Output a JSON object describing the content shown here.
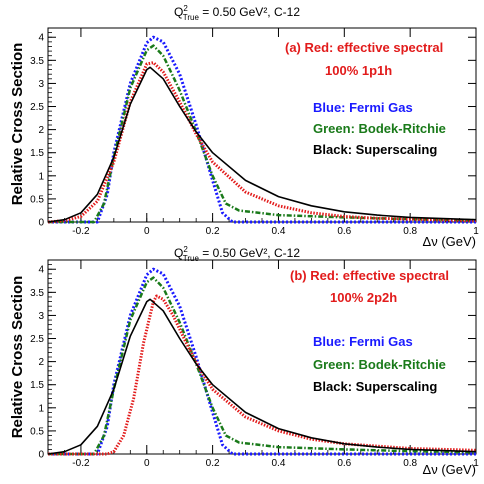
{
  "chart_data": [
    {
      "type": "line",
      "title_prefix": "Q",
      "title_sup": "2",
      "title_sub": "True",
      "title_rest": " = 0.50 GeV², C-12",
      "xlabel": "Δν (GeV)",
      "ylabel": "Relative Cross Section",
      "xlim": [
        -0.3,
        1.0
      ],
      "ylim": [
        0,
        4.2
      ],
      "xticks": [
        -0.2,
        0,
        0.2,
        0.4,
        0.6,
        0.8,
        1
      ],
      "xtick_labels": [
        "-0.2",
        "0",
        "0.2",
        "0.4",
        "0.6",
        "0.8",
        "1"
      ],
      "yticks": [
        0,
        0.5,
        1,
        1.5,
        2,
        2.5,
        3,
        3.5,
        4
      ],
      "ytick_labels": [
        "0",
        "0.5",
        "1",
        "1.5",
        "2",
        "2.5",
        "3",
        "3.5",
        "4"
      ],
      "annotation_line1": "(a) Red:  effective spectral",
      "annotation_line2": "100% 1p1h",
      "legend": [
        {
          "text": "Blue:  Fermi Gas",
          "color": "#1a1aff"
        },
        {
          "text": "Green:  Bodek-Ritchie",
          "color": "#1a7a1a"
        },
        {
          "text": "Black:  Superscaling",
          "color": "#000000"
        }
      ],
      "series": [
        {
          "color": "#1a1aff",
          "style": "dotted",
          "x": [
            -0.3,
            -0.15,
            -0.12,
            -0.1,
            -0.05,
            0,
            0.02,
            0.05,
            0.1,
            0.15,
            0.2,
            0.23,
            0.26,
            0.3,
            0.5,
            1.0
          ],
          "y": [
            0,
            0,
            0.6,
            1.5,
            3.0,
            3.88,
            4.0,
            3.9,
            3.2,
            2.1,
            0.9,
            0.2,
            0,
            0,
            0,
            0
          ]
        },
        {
          "color": "#1a7a1a",
          "style": "dashdot",
          "x": [
            -0.3,
            -0.16,
            -0.13,
            -0.1,
            -0.05,
            0,
            0.02,
            0.05,
            0.1,
            0.15,
            0.2,
            0.24,
            0.28,
            0.4,
            0.6,
            0.8,
            1.0
          ],
          "y": [
            0,
            0,
            0.4,
            1.4,
            2.9,
            3.72,
            3.82,
            3.6,
            2.85,
            1.95,
            1.0,
            0.4,
            0.25,
            0.15,
            0.1,
            0.06,
            0.04
          ]
        },
        {
          "color": "#e21b1b",
          "style": "dotted-thick",
          "x": [
            -0.3,
            -0.25,
            -0.2,
            -0.15,
            -0.1,
            -0.05,
            0,
            0.02,
            0.05,
            0.1,
            0.15,
            0.2,
            0.3,
            0.4,
            0.5,
            0.6,
            0.7,
            0.8,
            1.0
          ],
          "y": [
            0,
            0.03,
            0.12,
            0.45,
            1.3,
            2.6,
            3.42,
            3.45,
            3.25,
            2.6,
            1.9,
            1.3,
            0.65,
            0.35,
            0.2,
            0.12,
            0.08,
            0.06,
            0.03
          ]
        },
        {
          "color": "#000000",
          "style": "solid",
          "x": [
            -0.3,
            -0.25,
            -0.2,
            -0.15,
            -0.1,
            -0.05,
            0,
            0.01,
            0.05,
            0.1,
            0.15,
            0.2,
            0.3,
            0.4,
            0.5,
            0.6,
            0.7,
            0.8,
            1.0
          ],
          "y": [
            0,
            0.05,
            0.2,
            0.6,
            1.4,
            2.55,
            3.3,
            3.35,
            3.1,
            2.5,
            1.95,
            1.5,
            0.9,
            0.55,
            0.35,
            0.22,
            0.15,
            0.1,
            0.05
          ]
        }
      ]
    },
    {
      "type": "line",
      "title_prefix": "Q",
      "title_sup": "2",
      "title_sub": "True",
      "title_rest": " = 0.50 GeV², C-12",
      "xlabel": "Δν (GeV)",
      "ylabel": "Relative Cross Section",
      "xlim": [
        -0.3,
        1.0
      ],
      "ylim": [
        0,
        4.2
      ],
      "xticks": [
        -0.2,
        0,
        0.2,
        0.4,
        0.6,
        0.8,
        1
      ],
      "xtick_labels": [
        "-0.2",
        "0",
        "0.2",
        "0.4",
        "0.6",
        "0.8",
        "1"
      ],
      "yticks": [
        0,
        0.5,
        1,
        1.5,
        2,
        2.5,
        3,
        3.5,
        4
      ],
      "ytick_labels": [
        "0",
        "0.5",
        "1",
        "1.5",
        "2",
        "2.5",
        "3",
        "3.5",
        "4"
      ],
      "annotation_line1": "(b) Red:  effective spectral",
      "annotation_line2": "100% 2p2h",
      "legend": [
        {
          "text": "Blue:  Fermi Gas",
          "color": "#1a1aff"
        },
        {
          "text": "Green:  Bodek-Ritchie",
          "color": "#1a7a1a"
        },
        {
          "text": "Black:  Superscaling",
          "color": "#000000"
        }
      ],
      "series": [
        {
          "color": "#1a1aff",
          "style": "dotted",
          "x": [
            -0.3,
            -0.15,
            -0.12,
            -0.1,
            -0.05,
            0,
            0.02,
            0.05,
            0.1,
            0.15,
            0.2,
            0.23,
            0.26,
            0.3,
            0.5,
            1.0
          ],
          "y": [
            0,
            0,
            0.6,
            1.5,
            3.0,
            3.88,
            4.0,
            3.9,
            3.2,
            2.1,
            0.9,
            0.2,
            0,
            0,
            0,
            0
          ]
        },
        {
          "color": "#1a7a1a",
          "style": "dashdot",
          "x": [
            -0.3,
            -0.16,
            -0.13,
            -0.1,
            -0.05,
            0,
            0.02,
            0.05,
            0.1,
            0.15,
            0.2,
            0.24,
            0.28,
            0.4,
            0.6,
            0.8,
            1.0
          ],
          "y": [
            0,
            0,
            0.4,
            1.4,
            2.9,
            3.72,
            3.82,
            3.6,
            2.85,
            1.95,
            1.0,
            0.4,
            0.25,
            0.15,
            0.1,
            0.06,
            0.04
          ]
        },
        {
          "color": "#e21b1b",
          "style": "dotted-thick",
          "x": [
            -0.3,
            -0.12,
            -0.1,
            -0.07,
            -0.04,
            -0.01,
            0.02,
            0.03,
            0.05,
            0.08,
            0.12,
            0.16,
            0.2,
            0.3,
            0.4,
            0.5,
            0.6,
            0.8,
            1.0
          ],
          "y": [
            0,
            0,
            0.05,
            0.4,
            1.2,
            2.4,
            3.3,
            3.42,
            3.35,
            3.0,
            2.4,
            1.85,
            1.4,
            0.8,
            0.5,
            0.32,
            0.22,
            0.12,
            0.08
          ]
        },
        {
          "color": "#000000",
          "style": "solid",
          "x": [
            -0.3,
            -0.25,
            -0.2,
            -0.15,
            -0.1,
            -0.05,
            0,
            0.01,
            0.05,
            0.1,
            0.15,
            0.2,
            0.3,
            0.4,
            0.5,
            0.6,
            0.7,
            0.8,
            1.0
          ],
          "y": [
            0,
            0.05,
            0.2,
            0.6,
            1.4,
            2.55,
            3.3,
            3.35,
            3.1,
            2.5,
            1.95,
            1.5,
            0.9,
            0.55,
            0.35,
            0.22,
            0.15,
            0.1,
            0.05
          ]
        }
      ]
    }
  ]
}
